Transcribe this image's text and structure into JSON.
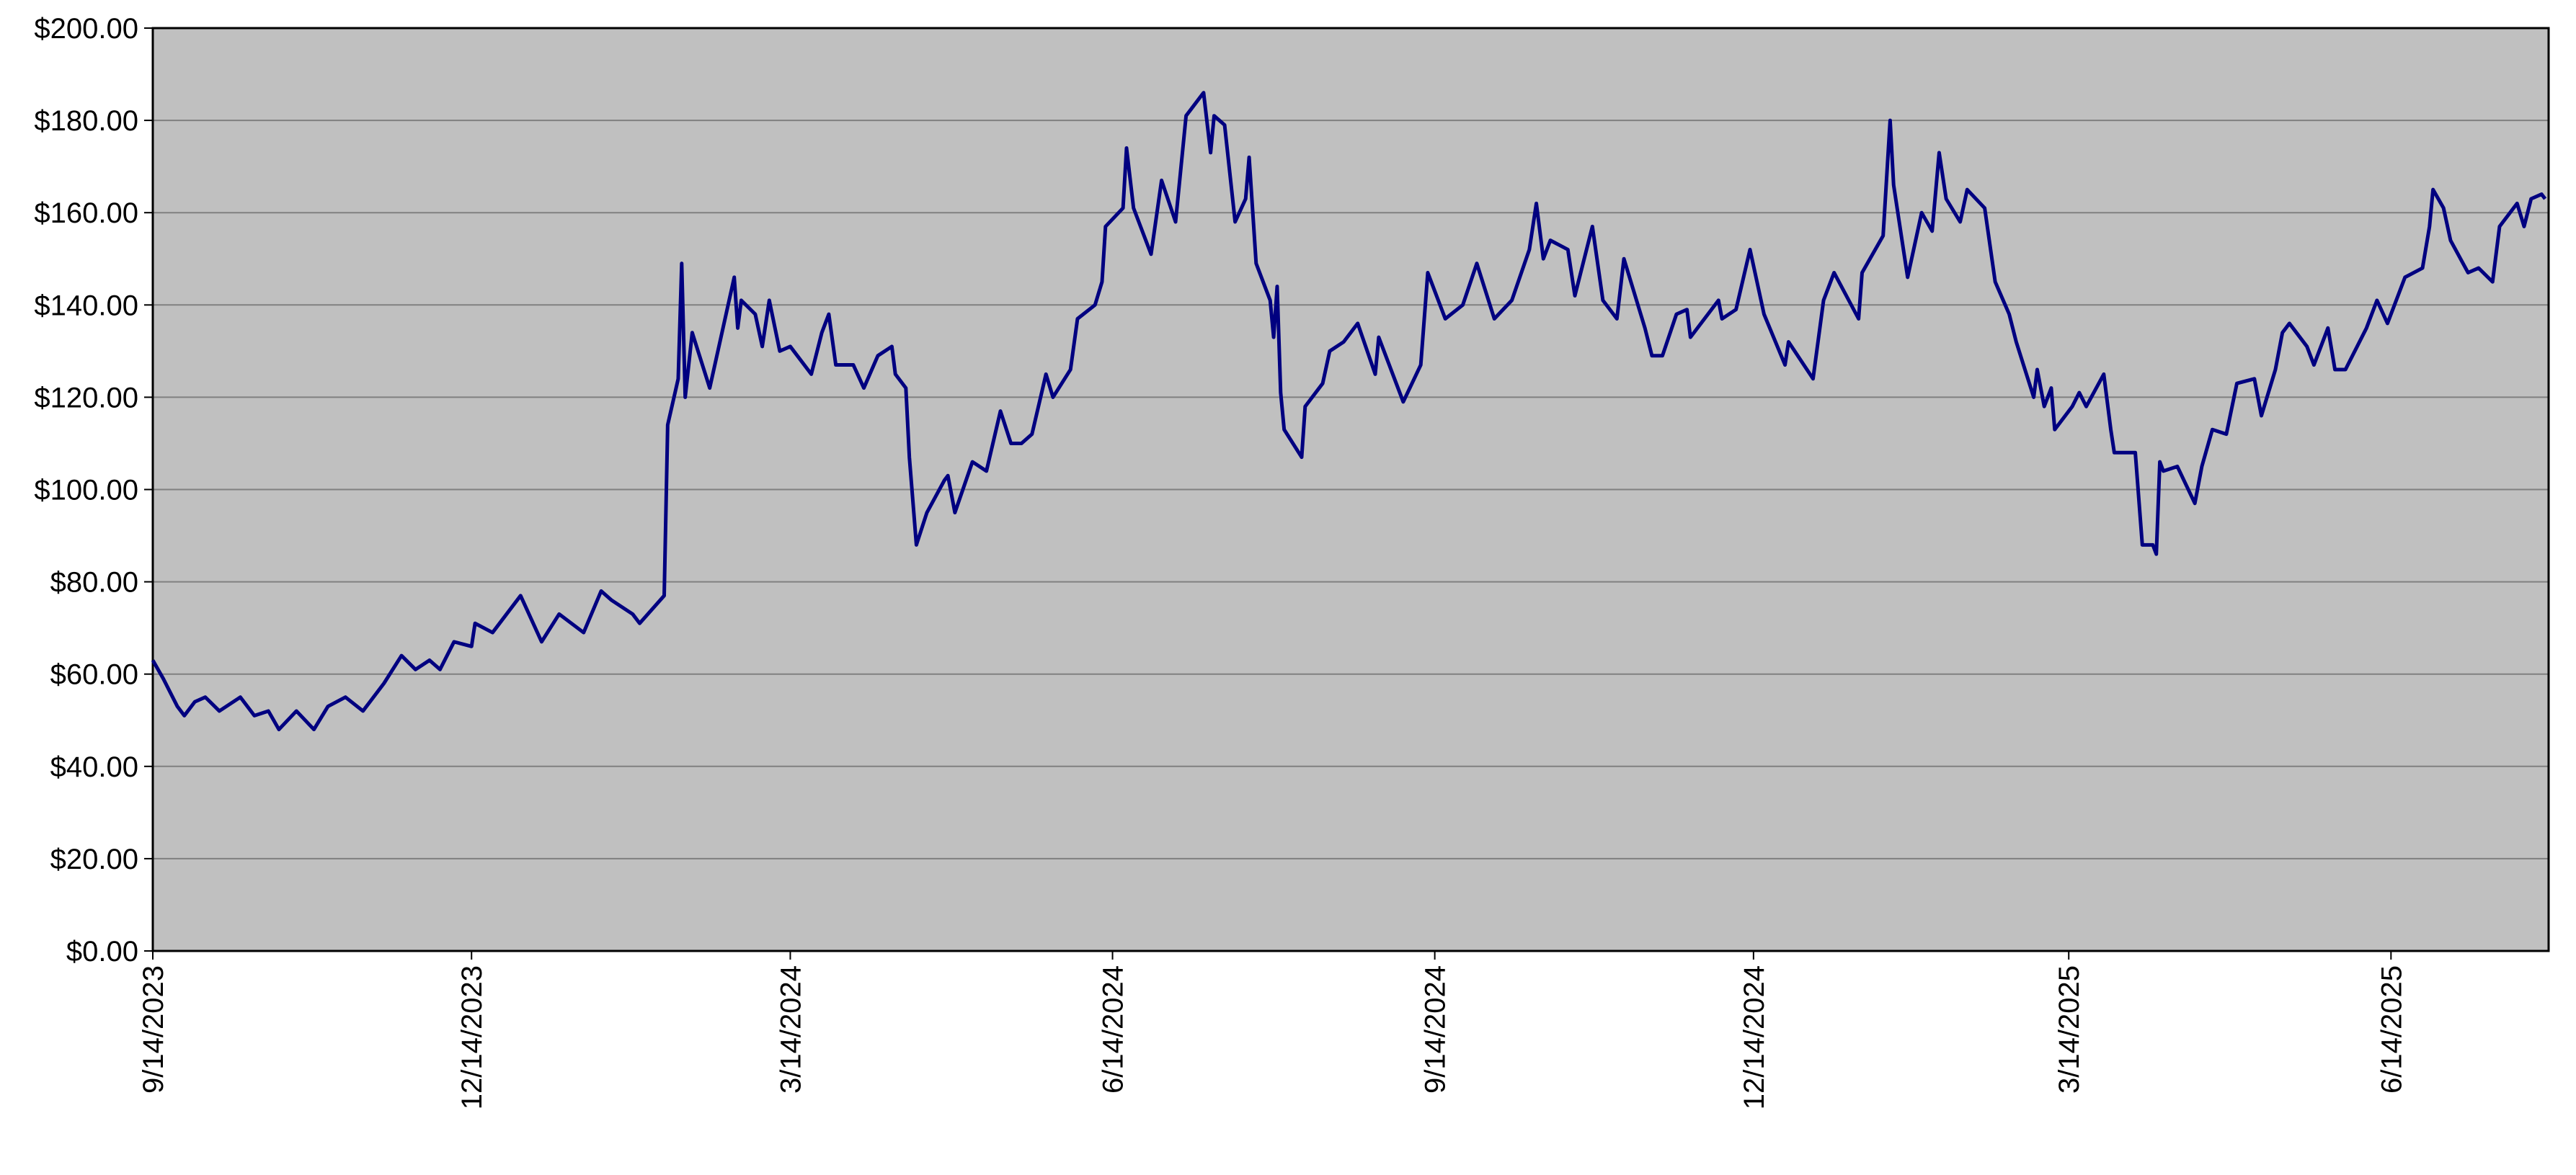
{
  "chart_data": {
    "type": "line",
    "x": [
      "9/14/2023",
      "9/17/2023",
      "9/21/2023",
      "9/23/2023",
      "9/26/2023",
      "9/29/2023",
      "10/3/2023",
      "10/9/2023",
      "10/13/2023",
      "10/17/2023",
      "10/20/2023",
      "10/25/2023",
      "10/30/2023",
      "11/3/2023",
      "11/8/2023",
      "11/13/2023",
      "11/19/2023",
      "11/24/2023",
      "11/28/2023",
      "12/2/2023",
      "12/5/2023",
      "12/9/2023",
      "12/14/2023",
      "12/15/2023",
      "12/20/2023",
      "12/24/2023",
      "12/28/2023",
      "1/3/2024",
      "1/8/2024",
      "1/15/2024",
      "1/20/2024",
      "1/23/2024",
      "1/29/2024",
      "1/31/2024",
      "2/7/2024",
      "2/8/2024",
      "2/11/2024",
      "2/12/2024",
      "2/13/2024",
      "2/15/2024",
      "2/20/2024",
      "2/27/2024",
      "2/28/2024",
      "2/29/2024",
      "3/4/2024",
      "3/6/2024",
      "3/8/2024",
      "3/11/2024",
      "3/14/2024",
      "3/20/2024",
      "3/23/2024",
      "3/25/2024",
      "3/27/2024",
      "4/1/2024",
      "4/4/2024",
      "4/8/2024",
      "4/12/2024",
      "4/13/2024",
      "4/16/2024",
      "4/17/2024",
      "4/19/2024",
      "4/22/2024",
      "4/27/2024",
      "4/28/2024",
      "4/30/2024",
      "5/5/2024",
      "5/9/2024",
      "5/13/2024",
      "5/16/2024",
      "5/19/2024",
      "5/22/2024",
      "5/26/2024",
      "5/28/2024",
      "6/2/2024",
      "6/4/2024",
      "6/9/2024",
      "6/11/2024",
      "6/12/2024",
      "6/17/2024",
      "6/18/2024",
      "6/20/2024",
      "6/25/2024",
      "6/28/2024",
      "7/2/2024",
      "7/5/2024",
      "7/10/2024",
      "7/12/2024",
      "7/13/2024",
      "7/16/2024",
      "7/19/2024",
      "7/22/2024",
      "7/23/2024",
      "7/25/2024",
      "7/29/2024",
      "7/30/2024",
      "7/31/2024",
      "8/1/2024",
      "8/2/2024",
      "8/7/2024",
      "8/8/2024",
      "8/13/2024",
      "8/15/2024",
      "8/19/2024",
      "8/23/2024",
      "8/28/2024",
      "8/29/2024",
      "9/5/2024",
      "9/10/2024",
      "9/12/2024",
      "9/17/2024",
      "9/22/2024",
      "9/26/2024",
      "10/1/2024",
      "10/6/2024",
      "10/11/2024",
      "10/13/2024",
      "10/15/2024",
      "10/17/2024",
      "10/22/2024",
      "10/24/2024",
      "10/29/2024",
      "11/1/2024",
      "11/5/2024",
      "11/7/2024",
      "11/13/2024",
      "11/15/2024",
      "11/18/2024",
      "11/22/2024",
      "11/25/2024",
      "11/26/2024",
      "12/4/2024",
      "12/5/2024",
      "12/9/2024",
      "12/13/2024",
      "12/17/2024",
      "12/23/2024",
      "12/24/2024",
      "12/31/2024",
      "1/3/2025",
      "1/6/2025",
      "1/13/2025",
      "1/14/2025",
      "1/20/2025",
      "1/22/2025",
      "1/23/2025",
      "1/27/2025",
      "1/31/2025",
      "2/3/2025",
      "2/5/2025",
      "2/7/2025",
      "2/11/2025",
      "2/13/2025",
      "2/18/2025",
      "2/21/2025",
      "2/25/2025",
      "2/27/2025",
      "3/4/2025",
      "3/5/2025",
      "3/7/2025",
      "3/9/2025",
      "3/10/2025",
      "3/15/2025",
      "3/17/2025",
      "3/19/2025",
      "3/24/2025",
      "3/26/2025",
      "3/27/2025",
      "4/2/2025",
      "4/4/2025",
      "4/7/2025",
      "4/8/2025",
      "4/9/2025",
      "4/10/2025",
      "4/14/2025",
      "4/19/2025",
      "4/21/2025",
      "4/24/2025",
      "4/28/2025",
      "5/1/2025",
      "5/6/2025",
      "5/8/2025",
      "5/12/2025",
      "5/14/2025",
      "5/16/2025",
      "5/21/2025",
      "5/23/2025",
      "5/27/2025",
      "5/29/2025",
      "6/1/2025",
      "6/7/2025",
      "6/10/2025",
      "6/13/2025",
      "6/18/2025",
      "6/23/2025",
      "6/25/2025",
      "6/26/2025",
      "6/29/2025",
      "7/1/2025",
      "7/6/2025",
      "7/9/2025",
      "7/13/2025",
      "7/15/2025",
      "7/20/2025",
      "7/22/2025",
      "7/24/2025",
      "7/27/2025",
      "7/28/2025"
    ],
    "series": [
      {
        "color": "#000080",
        "values": [
          63,
          59,
          53,
          51,
          54,
          55,
          52,
          55,
          51,
          52,
          48,
          52,
          48,
          53,
          55,
          52,
          58,
          64,
          61,
          63,
          61,
          67,
          66,
          71,
          69,
          73,
          77,
          67,
          73,
          69,
          78,
          76,
          73,
          71,
          77,
          114,
          124,
          149,
          120,
          134,
          122,
          146,
          135,
          141,
          138,
          131,
          141,
          130,
          131,
          125,
          134,
          138,
          127,
          127,
          122,
          129,
          131,
          125,
          122,
          107,
          88,
          95,
          102,
          103,
          95,
          106,
          104,
          117,
          110,
          110,
          112,
          125,
          120,
          126,
          137,
          140,
          145,
          157,
          161,
          174,
          161,
          151,
          167,
          158,
          181,
          186,
          173,
          181,
          179,
          158,
          163,
          172,
          149,
          141,
          133,
          144,
          121,
          113,
          107,
          118,
          123,
          130,
          132,
          136,
          125,
          133,
          119,
          127,
          147,
          137,
          140,
          149,
          137,
          141,
          152,
          162,
          150,
          154,
          152,
          142,
          157,
          141,
          137,
          150,
          135,
          129,
          129,
          138,
          139,
          133,
          141,
          137,
          139,
          152,
          138,
          127,
          132,
          124,
          141,
          147,
          137,
          147,
          155,
          180,
          166,
          146,
          160,
          156,
          173,
          163,
          158,
          165,
          161,
          145,
          138,
          132,
          120,
          126,
          118,
          122,
          113,
          118,
          121,
          118,
          125,
          113,
          108,
          108,
          88,
          88,
          86,
          106,
          104,
          105,
          97,
          105,
          113,
          112,
          123,
          124,
          116,
          126,
          134,
          136,
          131,
          127,
          135,
          126,
          126,
          135,
          141,
          136,
          146,
          148,
          157,
          165,
          161,
          154,
          147,
          148,
          145,
          157,
          162,
          157,
          163,
          164,
          163
        ]
      }
    ],
    "xlim": [
      "9/14/2023",
      "7/29/2025"
    ],
    "xticks": [
      "9/14/2023",
      "12/14/2023",
      "3/14/2024",
      "6/14/2024",
      "9/14/2024",
      "12/14/2024",
      "3/14/2025",
      "6/14/2025"
    ],
    "ylim": [
      0,
      200
    ],
    "yticks": [
      {
        "value": 0,
        "label": "$0.00"
      },
      {
        "value": 20,
        "label": "$20.00"
      },
      {
        "value": 40,
        "label": "$40.00"
      },
      {
        "value": 60,
        "label": "$60.00"
      },
      {
        "value": 80,
        "label": "$80.00"
      },
      {
        "value": 100,
        "label": "$100.00"
      },
      {
        "value": 120,
        "label": "$120.00"
      },
      {
        "value": 140,
        "label": "$140.00"
      },
      {
        "value": 160,
        "label": "$160.00"
      },
      {
        "value": 180,
        "label": "$180.00"
      },
      {
        "value": 200,
        "label": "$200.00"
      }
    ],
    "grid": true,
    "plot_background": "#c0c0c0"
  }
}
